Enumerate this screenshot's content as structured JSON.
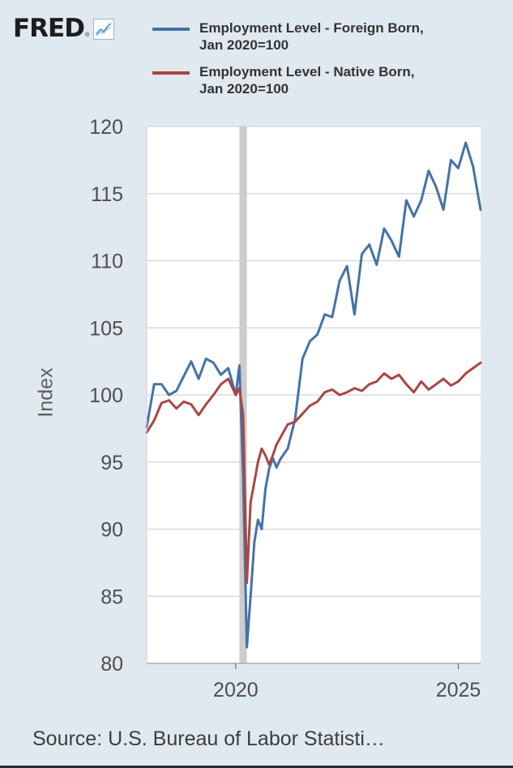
{
  "header": {
    "logo_text": "FRED",
    "logo_mark": "®",
    "logo_icon": "line-graph-icon"
  },
  "colors": {
    "background": "#e1e9f0",
    "plot_background": "#ffffff",
    "grid": "#d5d5d5",
    "foreign_born": "#4572a7",
    "native_born": "#aa4643",
    "recession_shade": "#cccccc"
  },
  "chart_data": {
    "type": "line",
    "title": "",
    "xlabel": "",
    "ylabel": "Index",
    "ylim": [
      80,
      120
    ],
    "xlim": [
      "2018-01",
      "2025-07"
    ],
    "y_ticks": [
      "80",
      "85",
      "90",
      "95",
      "100",
      "105",
      "110",
      "115",
      "120"
    ],
    "x_ticks": [
      "2020",
      "2025"
    ],
    "grid": true,
    "legend_position": "top",
    "recession": {
      "start": "2020-02",
      "end": "2020-04"
    },
    "source": "Source: U.S. Bureau of Labor Statisti…",
    "series": [
      {
        "name": "Employment Level - Foreign Born, Jan 2020=100",
        "color": "#4572a7",
        "x": [
          "2018-01",
          "2018-03",
          "2018-05",
          "2018-07",
          "2018-09",
          "2018-11",
          "2019-01",
          "2019-03",
          "2019-05",
          "2019-07",
          "2019-09",
          "2019-11",
          "2020-01",
          "2020-02",
          "2020-03",
          "2020-04",
          "2020-05",
          "2020-06",
          "2020-07",
          "2020-08",
          "2020-09",
          "2020-10",
          "2020-11",
          "2020-12",
          "2021-01",
          "2021-03",
          "2021-05",
          "2021-07",
          "2021-09",
          "2021-11",
          "2022-01",
          "2022-03",
          "2022-05",
          "2022-07",
          "2022-09",
          "2022-11",
          "2023-01",
          "2023-03",
          "2023-05",
          "2023-07",
          "2023-09",
          "2023-11",
          "2024-01",
          "2024-03",
          "2024-05",
          "2024-07",
          "2024-09",
          "2024-11",
          "2025-01",
          "2025-03",
          "2025-05",
          "2025-07"
        ],
        "values": [
          97.6,
          100.8,
          100.8,
          100.0,
          100.3,
          101.4,
          102.5,
          101.2,
          102.7,
          102.4,
          101.5,
          102.0,
          100.0,
          102.2,
          94.0,
          81.2,
          85.0,
          89.0,
          90.7,
          90.0,
          93.0,
          94.5,
          95.3,
          94.6,
          95.2,
          96.0,
          98.2,
          102.7,
          104.0,
          104.5,
          106.0,
          105.8,
          108.5,
          109.6,
          106.0,
          110.5,
          111.2,
          109.7,
          112.4,
          111.5,
          110.3,
          114.5,
          113.3,
          114.5,
          116.7,
          115.5,
          113.8,
          117.5,
          116.9,
          118.8,
          117.0,
          113.8
        ]
      },
      {
        "name": "Employment Level - Native Born, Jan 2020=100",
        "color": "#aa4643",
        "x": [
          "2018-01",
          "2018-03",
          "2018-05",
          "2018-07",
          "2018-09",
          "2018-11",
          "2019-01",
          "2019-03",
          "2019-05",
          "2019-07",
          "2019-09",
          "2019-11",
          "2020-01",
          "2020-02",
          "2020-03",
          "2020-04",
          "2020-05",
          "2020-06",
          "2020-07",
          "2020-08",
          "2020-09",
          "2020-10",
          "2020-11",
          "2020-12",
          "2021-01",
          "2021-03",
          "2021-05",
          "2021-07",
          "2021-09",
          "2021-11",
          "2022-01",
          "2022-03",
          "2022-05",
          "2022-07",
          "2022-09",
          "2022-11",
          "2023-01",
          "2023-03",
          "2023-05",
          "2023-07",
          "2023-09",
          "2023-11",
          "2024-01",
          "2024-03",
          "2024-05",
          "2024-07",
          "2024-09",
          "2024-11",
          "2025-01",
          "2025-03",
          "2025-05",
          "2025-07"
        ],
        "values": [
          97.2,
          98.1,
          99.4,
          99.6,
          99.0,
          99.5,
          99.3,
          98.5,
          99.3,
          100.0,
          100.8,
          101.2,
          100.0,
          100.5,
          98.5,
          86.0,
          92.0,
          93.5,
          95.0,
          96.0,
          95.5,
          94.8,
          95.5,
          96.3,
          96.8,
          97.8,
          98.0,
          98.6,
          99.2,
          99.5,
          100.2,
          100.4,
          100.0,
          100.2,
          100.5,
          100.3,
          100.8,
          101.0,
          101.6,
          101.2,
          101.5,
          100.8,
          100.2,
          101.0,
          100.4,
          100.8,
          101.2,
          100.7,
          101.0,
          101.6,
          102.0,
          102.4
        ]
      }
    ]
  }
}
